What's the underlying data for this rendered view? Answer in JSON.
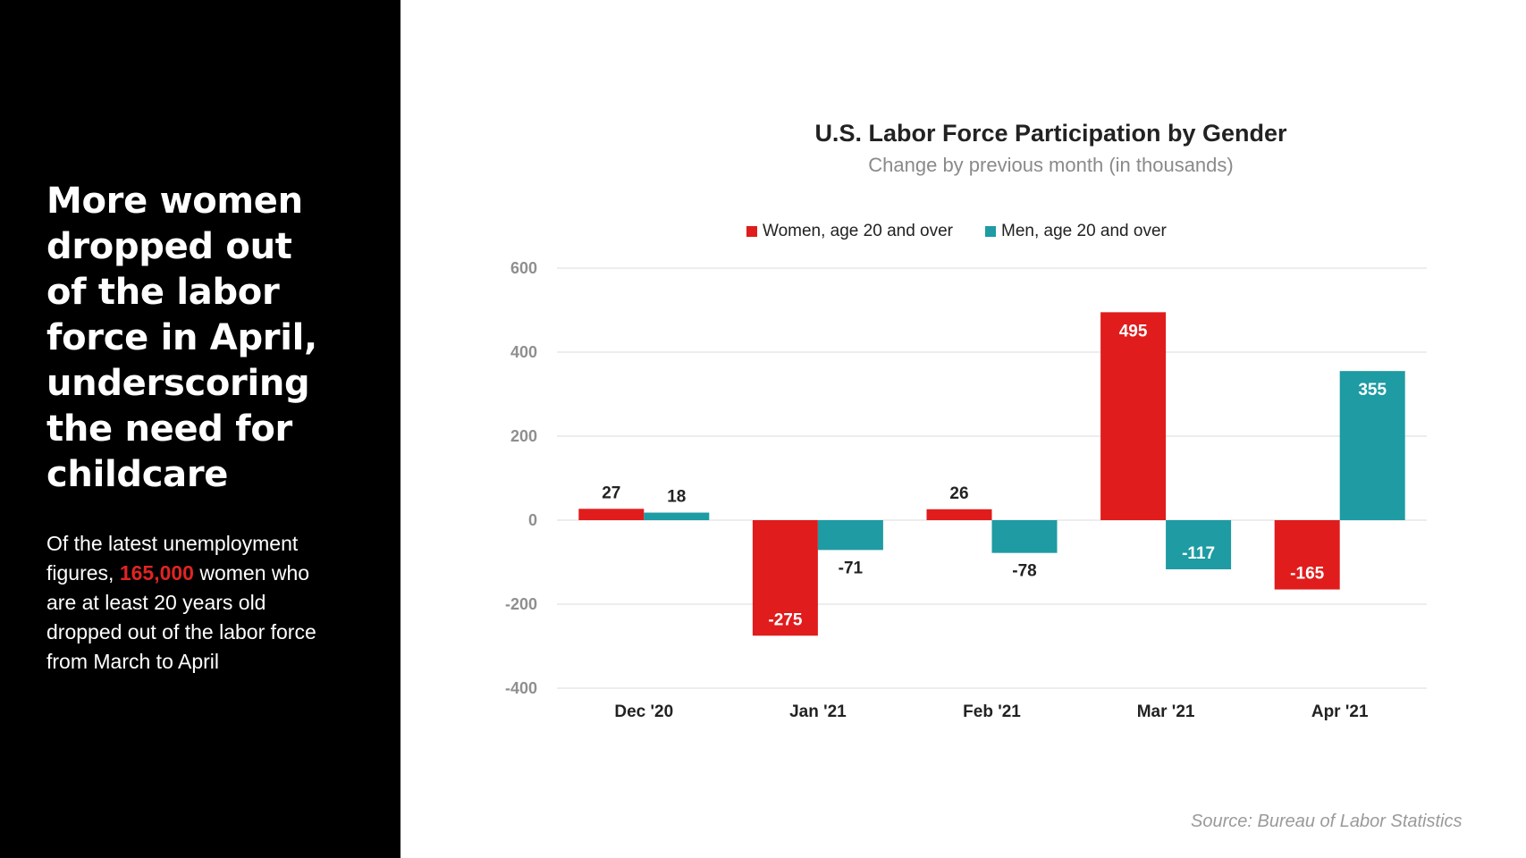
{
  "left": {
    "headline": "More women dropped out of the labor force in April, underscoring the need for childcare",
    "body_prefix": "Of the latest unemployment figures, ",
    "body_highlight": "165,000",
    "body_suffix": " women who are at least 20 years old dropped out of the labor force from March to April"
  },
  "source": "Source: Bureau of Labor Statistics",
  "colors": {
    "women": "#e01c1c",
    "men": "#1e9ba3",
    "background_left": "#000000",
    "highlight": "#e02424"
  },
  "chart_data": {
    "type": "bar",
    "title": "U.S. Labor Force Participation by Gender",
    "subtitle": "Change by previous month (in thousands)",
    "categories": [
      "Dec '20",
      "Jan '21",
      "Feb '21",
      "Mar '21",
      "Apr '21"
    ],
    "series": [
      {
        "name": "Women, age 20 and over",
        "values": [
          27,
          -275,
          26,
          495,
          -165
        ]
      },
      {
        "name": "Men, age 20 and over",
        "values": [
          18,
          -71,
          -78,
          -117,
          355
        ]
      }
    ],
    "ylim": [
      -400,
      600
    ],
    "yticks": [
      600,
      400,
      200,
      0,
      -200,
      -400
    ],
    "grid": true,
    "legend": "top"
  }
}
